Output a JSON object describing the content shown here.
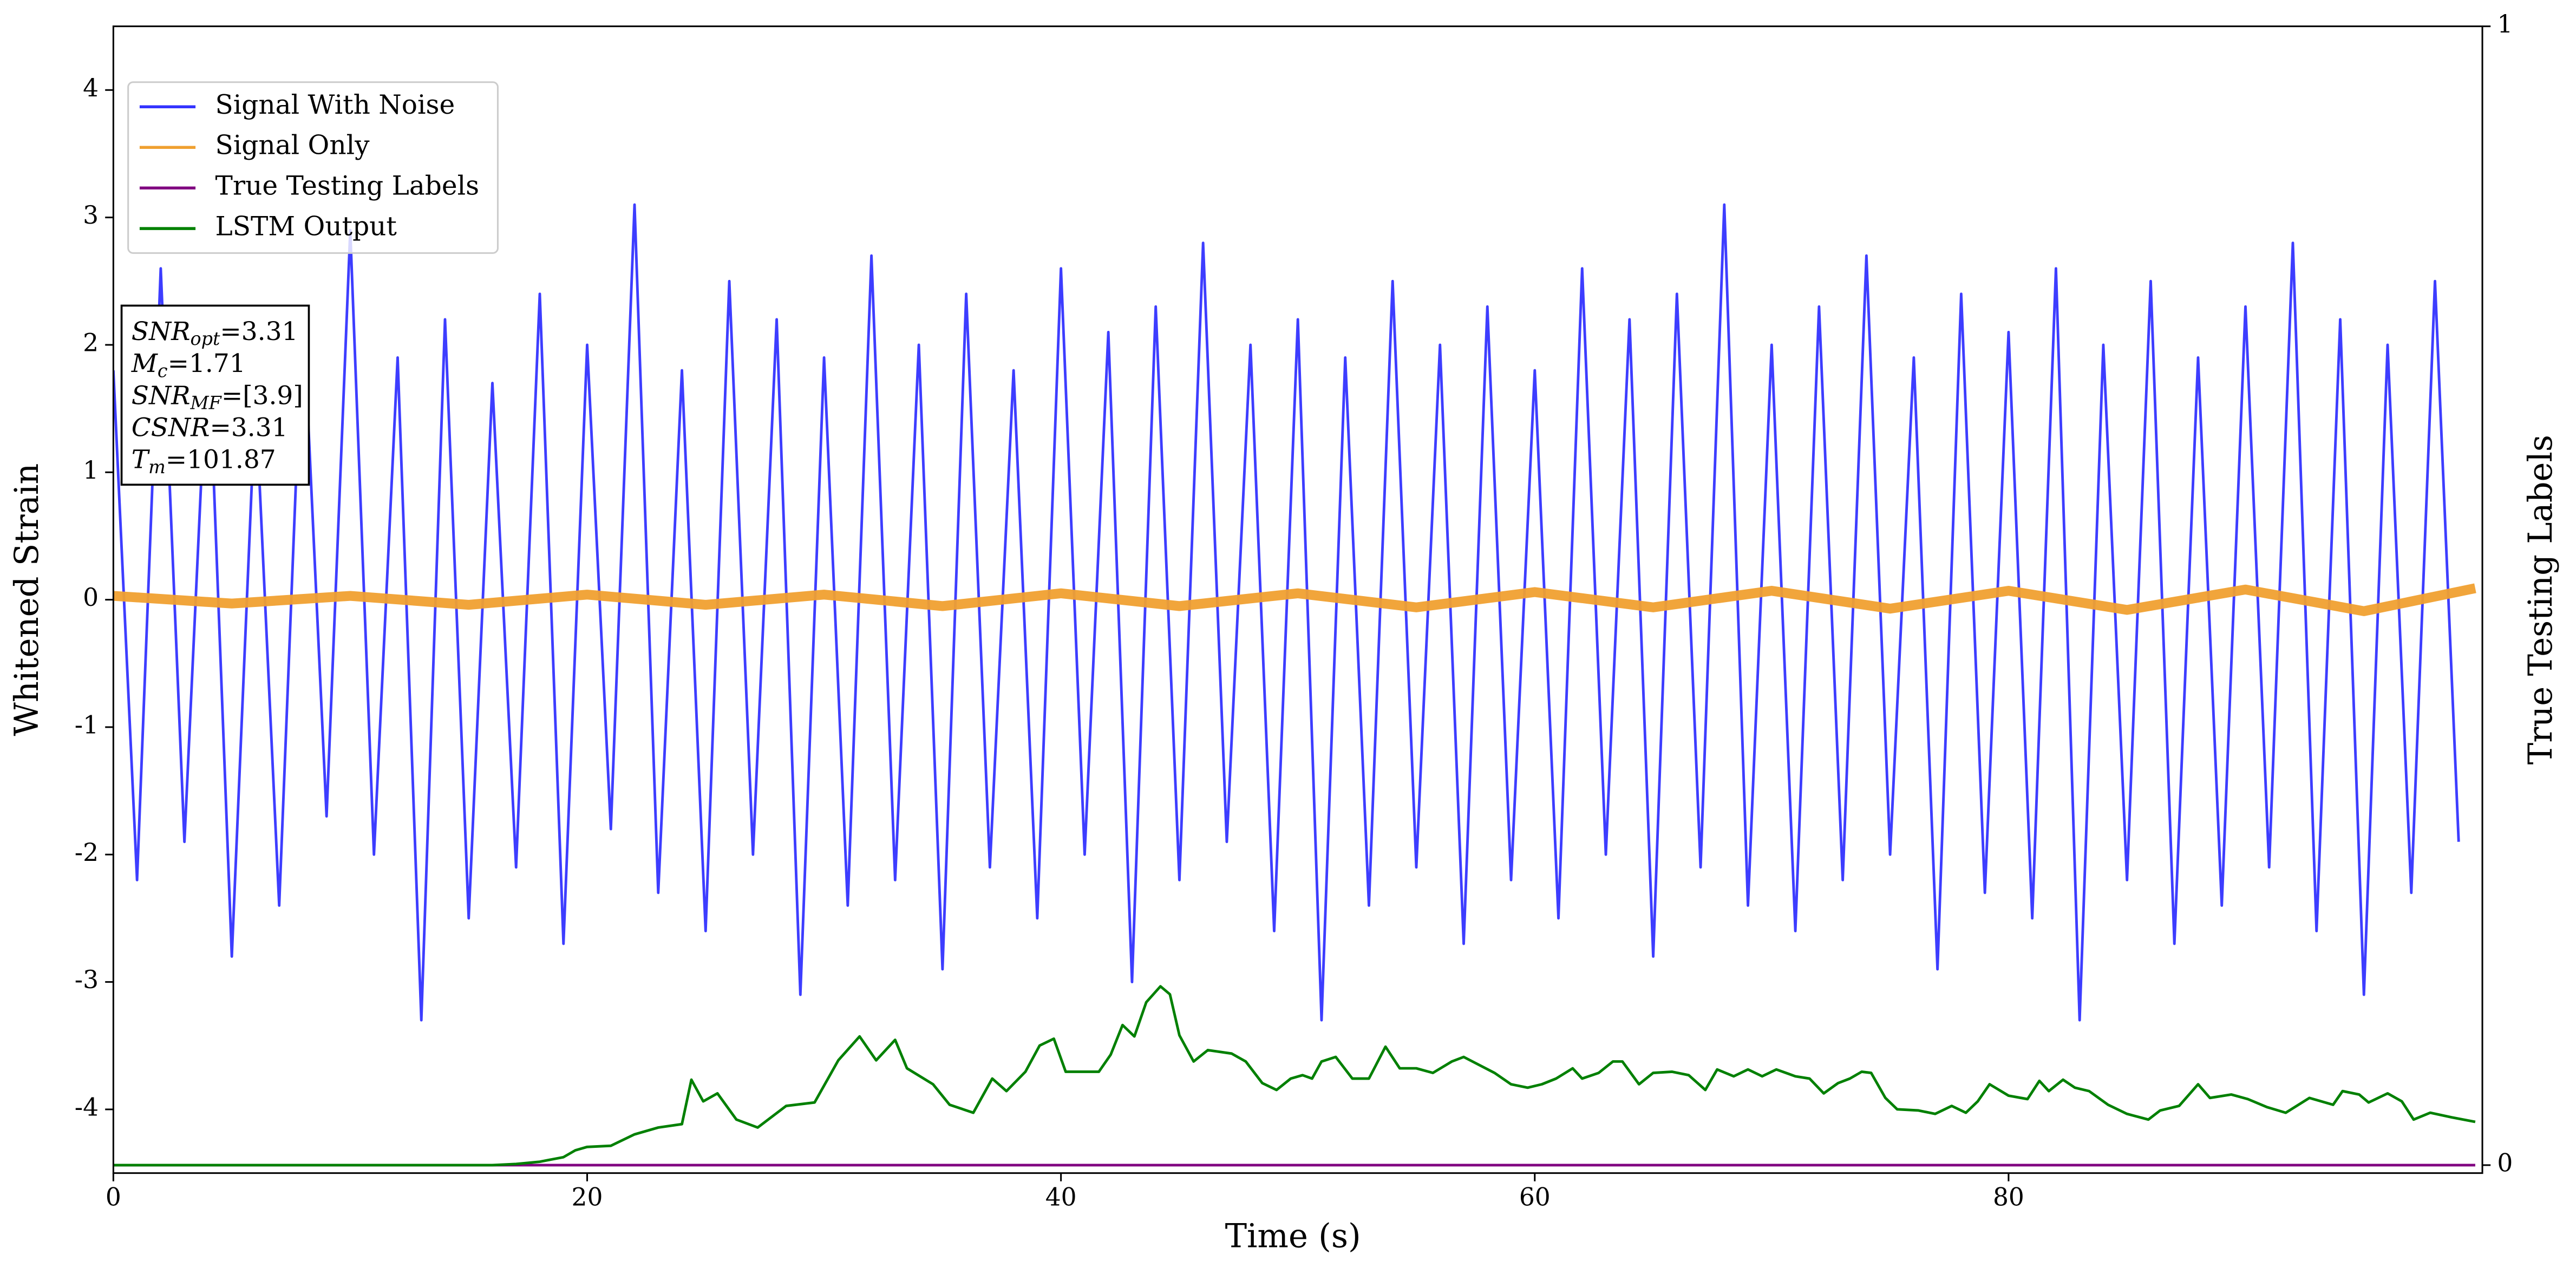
{
  "chart_data": {
    "type": "line",
    "xlabel": "Time (s)",
    "ylabel": "Whitened Strain",
    "y2label": "True Testing Labels",
    "xlim": [
      0,
      100
    ],
    "xticks": [
      0,
      20,
      40,
      60,
      80
    ],
    "ylim": [
      -4.5,
      4.5
    ],
    "yticks": [
      -4,
      -3,
      -2,
      -1,
      0,
      1,
      2,
      3,
      4
    ],
    "y2lim": [
      -0.007,
      1
    ],
    "y2ticks": [
      0,
      1
    ],
    "legend": "upper left",
    "annotations": [
      {
        "name": "SNR",
        "sub": "opt",
        "text": "=3.31"
      },
      {
        "name": "M",
        "sub": "c",
        "text": "=1.71"
      },
      {
        "name": "SNR",
        "sub": "MF",
        "text": "=[3.9]"
      },
      {
        "name": "CSNR",
        "text": "=3.31"
      },
      {
        "name": "T",
        "sub": "m",
        "text": "=101.87"
      }
    ],
    "series": [
      {
        "name": "Signal With Noise",
        "color": "#3333ff",
        "x": [
          0,
          1,
          2,
          3,
          4,
          5,
          6,
          7,
          8,
          9,
          10,
          11,
          12,
          13,
          14,
          15,
          16,
          17,
          18,
          19,
          20,
          21,
          22,
          23,
          24,
          25,
          26,
          27,
          28,
          29,
          30,
          31,
          32,
          33,
          34,
          35,
          36,
          37,
          38,
          39,
          40,
          41,
          42,
          43,
          44,
          45,
          46,
          47,
          48,
          49,
          50,
          51,
          52,
          53,
          54,
          55,
          56,
          57,
          58,
          59,
          60,
          61,
          62,
          63,
          64,
          65,
          66,
          67,
          68,
          69,
          70,
          71,
          72,
          73,
          74,
          75,
          76,
          77,
          78,
          79,
          80,
          81,
          82,
          83,
          84,
          85,
          86,
          87,
          88,
          89,
          90,
          91,
          92,
          93,
          94,
          95,
          96,
          97,
          98,
          99
        ],
        "values": [
          1.8,
          -2.2,
          2.6,
          -1.9,
          2.1,
          -2.8,
          1.6,
          -2.4,
          2.3,
          -1.7,
          2.9,
          -2.0,
          1.9,
          -3.3,
          2.2,
          -2.5,
          1.7,
          -2.1,
          2.4,
          -2.7,
          2.0,
          -1.8,
          3.1,
          -2.3,
          1.8,
          -2.6,
          2.5,
          -2.0,
          2.2,
          -3.1,
          1.9,
          -2.4,
          2.7,
          -2.2,
          2.0,
          -2.9,
          2.4,
          -2.1,
          1.8,
          -2.5,
          2.6,
          -2.0,
          2.1,
          -3.0,
          2.3,
          -2.2,
          2.8,
          -1.9,
          2.0,
          -2.6,
          2.2,
          -3.3,
          1.9,
          -2.4,
          2.5,
          -2.1,
          2.0,
          -2.7,
          2.3,
          -2.2,
          1.8,
          -2.5,
          2.6,
          -2.0,
          2.2,
          -2.8,
          2.4,
          -2.1,
          3.1,
          -2.4,
          2.0,
          -2.6,
          2.3,
          -2.2,
          2.7,
          -2.0,
          1.9,
          -2.9,
          2.4,
          -2.3,
          2.1,
          -2.5,
          2.6,
          -3.3,
          2.0,
          -2.2,
          2.5,
          -2.7,
          1.9,
          -2.4,
          2.3,
          -2.1,
          2.8,
          -2.6,
          2.2,
          -3.1,
          2.0,
          -2.3,
          2.5,
          -1.9
        ]
      },
      {
        "name": "Signal Only",
        "color": "#f0a030",
        "x": [
          0,
          5,
          10,
          15,
          20,
          25,
          30,
          35,
          40,
          45,
          50,
          55,
          60,
          65,
          70,
          75,
          80,
          85,
          90,
          95,
          99.7
        ],
        "values": [
          0.03,
          -0.03,
          0.03,
          -0.04,
          0.04,
          -0.04,
          0.04,
          -0.05,
          0.05,
          -0.05,
          0.05,
          -0.06,
          0.06,
          -0.06,
          0.07,
          -0.07,
          0.07,
          -0.08,
          0.08,
          -0.09,
          0.09
        ]
      },
      {
        "name": "True Testing Labels",
        "color": "#800080",
        "axis": "y2",
        "x": [
          0,
          99.7
        ],
        "values": [
          0,
          0
        ]
      },
      {
        "name": "LSTM Output",
        "color": "#008000",
        "axis": "y2",
        "x": [
          0,
          16,
          17,
          18,
          19,
          19.5,
          20,
          21,
          22,
          23,
          24,
          24.4,
          24.9,
          25.5,
          26.3,
          27.2,
          28.4,
          29.6,
          30.6,
          31.5,
          32.2,
          33,
          33.5,
          34.6,
          35.3,
          36.3,
          37.1,
          37.7,
          38.5,
          39.1,
          39.7,
          40.2,
          41.6,
          42.1,
          42.6,
          43.1,
          43.6,
          44.2,
          44.6,
          45,
          45.6,
          46.2,
          47.2,
          47.8,
          48.5,
          49.1,
          49.7,
          50.2,
          50.6,
          51,
          51.6,
          52.3,
          53,
          53.7,
          54.3,
          55,
          55.7,
          56.5,
          57,
          58.3,
          59,
          59.7,
          60.3,
          60.9,
          61.6,
          62,
          62.7,
          63.3,
          63.7,
          64.4,
          65,
          65.8,
          66.5,
          67.2,
          67.7,
          68.4,
          69,
          69.6,
          70.2,
          71,
          71.6,
          72.2,
          72.8,
          73.3,
          73.8,
          74.2,
          74.8,
          75.3,
          76.2,
          76.9,
          77.6,
          78.2,
          78.7,
          79.2,
          80,
          80.8,
          81.3,
          81.7,
          82.3,
          82.8,
          83.4,
          84.2,
          85,
          85.9,
          86.4,
          87.2,
          88,
          88.5,
          89.4,
          90.1,
          90.9,
          91.7,
          92.7,
          93.7,
          94.1,
          94.8,
          95.2,
          96,
          96.6,
          97.1,
          97.8,
          98.7,
          99.7
        ],
        "values": [
          0,
          0,
          0.001,
          0.003,
          0.007,
          0.013,
          0.016,
          0.017,
          0.027,
          0.033,
          0.036,
          0.075,
          0.056,
          0.063,
          0.04,
          0.033,
          0.052,
          0.055,
          0.092,
          0.113,
          0.092,
          0.11,
          0.085,
          0.071,
          0.053,
          0.046,
          0.076,
          0.065,
          0.082,
          0.105,
          0.111,
          0.082,
          0.082,
          0.097,
          0.123,
          0.113,
          0.143,
          0.157,
          0.15,
          0.114,
          0.091,
          0.101,
          0.098,
          0.091,
          0.072,
          0.066,
          0.076,
          0.079,
          0.076,
          0.091,
          0.095,
          0.076,
          0.076,
          0.104,
          0.085,
          0.085,
          0.081,
          0.091,
          0.095,
          0.081,
          0.071,
          0.068,
          0.071,
          0.076,
          0.085,
          0.076,
          0.081,
          0.091,
          0.091,
          0.071,
          0.081,
          0.082,
          0.079,
          0.066,
          0.084,
          0.078,
          0.084,
          0.078,
          0.084,
          0.078,
          0.076,
          0.063,
          0.072,
          0.076,
          0.082,
          0.081,
          0.059,
          0.049,
          0.048,
          0.045,
          0.052,
          0.046,
          0.056,
          0.071,
          0.061,
          0.058,
          0.074,
          0.065,
          0.075,
          0.068,
          0.065,
          0.053,
          0.045,
          0.04,
          0.048,
          0.052,
          0.071,
          0.059,
          0.062,
          0.058,
          0.051,
          0.046,
          0.059,
          0.053,
          0.065,
          0.062,
          0.055,
          0.063,
          0.056,
          0.04,
          0.046,
          0.042,
          0.038
        ]
      }
    ]
  }
}
